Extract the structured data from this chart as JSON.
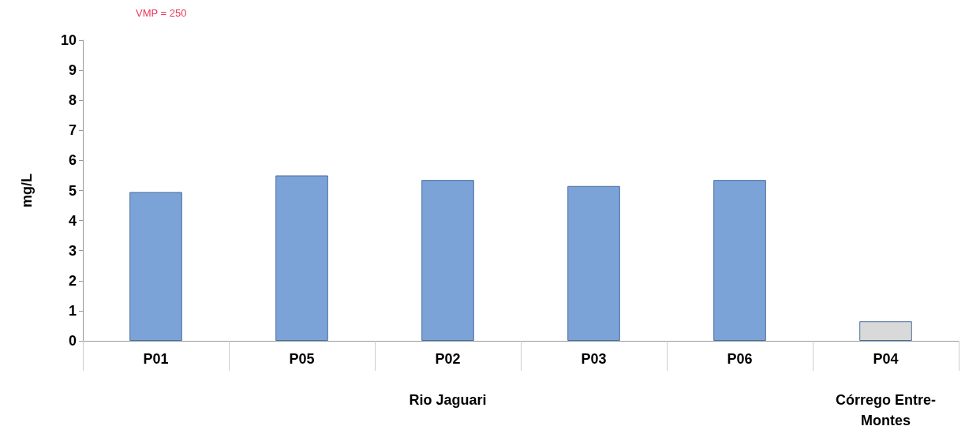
{
  "chart_data": {
    "type": "bar",
    "ylabel": "mg/L",
    "categories": [
      "P01",
      "P05",
      "P02",
      "P03",
      "P06",
      "P04"
    ],
    "values": [
      4.95,
      5.5,
      5.35,
      5.15,
      5.35,
      0.65
    ],
    "colors": [
      "#7ba3d8",
      "#7ba3d8",
      "#7ba3d8",
      "#7ba3d8",
      "#7ba3d8",
      "#d9d9d9"
    ],
    "ylim": [
      0,
      10
    ],
    "yticks": [
      0,
      1,
      2,
      3,
      4,
      5,
      6,
      7,
      8,
      9,
      10
    ],
    "grid": false,
    "annotations": [
      "VMP = 250",
      "Rio Jaguari",
      "Córrego Entre-\nMontes"
    ]
  }
}
